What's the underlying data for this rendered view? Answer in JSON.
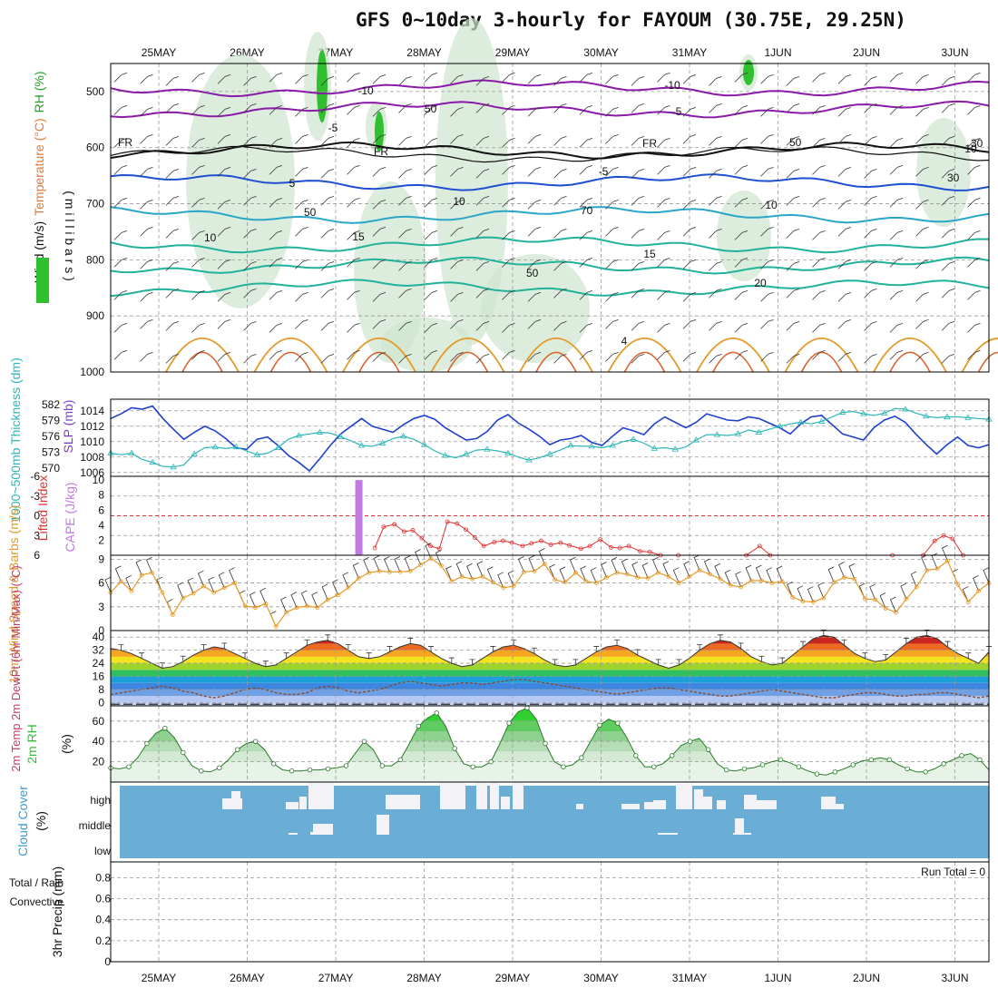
{
  "title": "GFS 0~10day 3-hourly for FAYOUM (30.75E, 29.25N)",
  "dates": [
    "25MAY",
    "26MAY",
    "27MAY",
    "28MAY",
    "29MAY",
    "30MAY",
    "31MAY",
    "1JUN",
    "2JUN",
    "3JUN"
  ],
  "colors": {
    "frame": "#000000",
    "grid": "#999999",
    "purple": "#8a1aa8",
    "blue": "#1f4fd1",
    "cyan": "#2aa6c9",
    "teal": "#20b29a",
    "orange": "#e59a28",
    "green": "#2fbf2f",
    "cloud": "#6aaed6",
    "cape": "#c07be0",
    "lifted": "#e03030",
    "thickness": "#2bb7b7",
    "slp": "#1f3fcf"
  },
  "chart_data": [
    {
      "id": "upper_air",
      "type": "contour",
      "ylabel_parts": [
        "Wind (m/s)",
        "Temperature (°C)",
        "RH (%)"
      ],
      "ylabel_unit": "( m i l l i b a r s )",
      "ylim": [
        450,
        1000
      ],
      "yticks": [
        "500",
        "600",
        "700",
        "800",
        "900",
        "1000"
      ],
      "isotherm_labels": [
        "-10",
        "-10",
        "-5",
        "-5",
        "FR",
        "FR",
        "FR",
        "-5",
        "5",
        "10",
        "10",
        "10",
        "15",
        "15",
        "20",
        "4"
      ],
      "rh_labels": [
        "50",
        "50",
        "50",
        "10",
        "70",
        "50",
        "30",
        "30"
      ]
    },
    {
      "id": "thickness_slp",
      "type": "line",
      "ylabel_left": "1000~500mb Thickness (dm)",
      "ylabel_right": "SLP (mb)",
      "yticks_left": [
        "582",
        "579",
        "576",
        "573",
        "570"
      ],
      "yticks_right": [
        "1014",
        "1012",
        "1010",
        "1008",
        "1006"
      ],
      "slp_range": [
        1005.5,
        1015.5
      ],
      "slp": [
        1013,
        1013.6,
        1014.4,
        1014.2,
        1014.6,
        1013,
        1011.6,
        1010.3,
        1011.2,
        1012,
        1011.4,
        1010.4,
        1009.2,
        1009,
        1010.3,
        1010.6,
        1009.5,
        1008.2,
        1007.3,
        1006.2,
        1007.8,
        1009.5,
        1011,
        1012,
        1013,
        1012,
        1011.6,
        1011.2,
        1012.2,
        1013,
        1013.4,
        1012.9,
        1011.8,
        1011,
        1010.2,
        1010.4,
        1011.3,
        1012.8,
        1013.5,
        1012.4,
        1011.6,
        1010.7,
        1009.6,
        1010.2,
        1010.4,
        1010.8,
        1009.9,
        1009.5,
        1010.7,
        1011.8,
        1011.4,
        1010.9,
        1012.3,
        1013.2,
        1012.5,
        1011.8,
        1012.5,
        1013.6,
        1013.2,
        1012.8,
        1012.7,
        1013.2,
        1013,
        1012.4,
        1011.8,
        1011,
        1012.3,
        1013.2,
        1013.4,
        1012.2,
        1011,
        1010.6,
        1010.2,
        1011.8,
        1012.8,
        1013.3,
        1012.5,
        1011,
        1009.6,
        1008.4,
        1009.6,
        1010.6,
        1009.5,
        1009.2,
        1009.6
      ],
      "thickness": [
        1008.5,
        1008.3,
        1008.5,
        1007.7,
        1007.3,
        1006.8,
        1006.7,
        1007,
        1008.4,
        1009.2,
        1009.3,
        1009.1,
        1009.3,
        1008.8,
        1008.3,
        1008.5,
        1009.2,
        1010.3,
        1010.8,
        1011,
        1011.2,
        1011.1,
        1010.6,
        1010.1,
        1009.5,
        1009.4,
        1009.8,
        1010.4,
        1010.7,
        1010.3,
        1009.6,
        1008.8,
        1008.2,
        1007.9,
        1008.4,
        1008.9,
        1009,
        1008.8,
        1008.5,
        1008,
        1007.6,
        1007.9,
        1008.4,
        1008.9,
        1009.5,
        1009.4,
        1009.4,
        1009.2,
        1009.5,
        1010,
        1010.3,
        1009.8,
        1009.1,
        1009.2,
        1009,
        1009.3,
        1010.2,
        1010.9,
        1010.9,
        1010.8,
        1011,
        1011.5,
        1011.2,
        1011.6,
        1012,
        1012.3,
        1012.5,
        1012.3,
        1012.6,
        1013.2,
        1013.8,
        1013.9,
        1013.6,
        1013.4,
        1013.7,
        1014.3,
        1014.2,
        1013.7,
        1013.3,
        1013.1,
        1013.2,
        1013.2,
        1013.1,
        1013,
        1012.9
      ],
      "x_start": 0.3
    },
    {
      "id": "lifted_cape",
      "type": "line+bar",
      "ylabel_left": "Lifted Index",
      "ylabel_right": "CAPE (J/kg)",
      "yticks_left": [
        "-6",
        "-3",
        "0",
        "3",
        "6"
      ],
      "yticks_right": [
        "10",
        "8",
        "6",
        "4",
        "2"
      ],
      "li_range": [
        -6,
        6
      ],
      "cape_bar": {
        "x": 2.27,
        "value": 10
      },
      "lifted_index": [
        [
          2.45,
          4.9
        ],
        [
          2.55,
          1.7
        ],
        [
          2.67,
          1.3
        ],
        [
          2.78,
          2.4
        ],
        [
          2.88,
          2.2
        ],
        [
          2.98,
          3.4
        ],
        [
          3.08,
          4.6
        ],
        [
          3.18,
          5.0
        ],
        [
          3.27,
          0.9
        ],
        [
          3.38,
          1.2
        ],
        [
          3.48,
          2.1
        ],
        [
          3.58,
          3.3
        ],
        [
          3.68,
          4.6
        ],
        [
          3.8,
          4.0
        ],
        [
          3.9,
          3.8
        ],
        [
          4.0,
          4.1
        ],
        [
          4.12,
          4.6
        ],
        [
          4.22,
          4.2
        ],
        [
          4.33,
          3.8
        ],
        [
          4.44,
          4.4
        ],
        [
          4.55,
          4.1
        ],
        [
          4.65,
          4.5
        ],
        [
          4.78,
          5.0
        ],
        [
          4.88,
          4.6
        ],
        [
          5.0,
          3.6
        ],
        [
          5.12,
          4.8
        ],
        [
          5.22,
          4.9
        ],
        [
          5.32,
          4.6
        ],
        [
          5.45,
          5.4
        ],
        [
          5.56,
          5.5
        ],
        [
          5.68,
          6.0
        ],
        [
          5.88,
          6.0
        ],
        [
          6.65,
          6.0
        ],
        [
          6.8,
          4.6
        ],
        [
          6.92,
          6.0
        ],
        [
          8.3,
          6.0
        ],
        [
          8.65,
          6.0
        ],
        [
          8.78,
          3.8
        ],
        [
          8.88,
          3.0
        ],
        [
          8.98,
          3.5
        ],
        [
          9.1,
          6.0
        ]
      ]
    },
    {
      "id": "wind10m",
      "type": "line",
      "ylabel": "10m Wind Speed & Barbs (m/s)",
      "yticks": [
        "9",
        "6",
        "3",
        "0"
      ],
      "ylim": [
        0,
        9.5
      ],
      "speed": [
        4.8,
        6.2,
        5.0,
        7.0,
        7.3,
        4.8,
        2.0,
        4.1,
        4.7,
        5.6,
        4.8,
        5.4,
        6.0,
        3.1,
        2.9,
        3.4,
        0.5,
        2.3,
        2.9,
        3.1,
        2.9,
        3.9,
        4.5,
        5.4,
        6.6,
        7.3,
        7.5,
        7.4,
        7.4,
        7.5,
        8.3,
        9.1,
        8.2,
        6.2,
        6.8,
        6.5,
        6.8,
        6.1,
        5.4,
        5.6,
        7.4,
        7.5,
        8.4,
        6.4,
        6.1,
        7.3,
        6.2,
        6.0,
        6.7,
        7.3,
        7.1,
        6.7,
        6.6,
        7.3,
        6.8,
        6.0,
        6.8,
        7.6,
        7.1,
        6.5,
        5.7,
        5.5,
        6.3,
        6.3,
        6.0,
        6.2,
        4.2,
        3.7,
        3.6,
        4.1,
        6.1,
        6.7,
        6.5,
        4.0,
        3.9,
        2.8,
        2.3,
        4.0,
        5.5,
        7.6,
        7.8,
        8.8,
        5.8,
        3.6,
        5.0,
        6.0
      ]
    },
    {
      "id": "temp2m",
      "type": "area",
      "ylabel": "2m Temp 2m DewPt (6hr Min/Max) (°C)",
      "yticks": [
        "40",
        "32",
        "24",
        "16",
        "8",
        "0"
      ],
      "ylim": [
        -2,
        44
      ],
      "temperature": [
        33,
        32,
        30,
        27,
        24,
        21,
        22,
        25,
        29,
        32,
        34,
        33,
        30,
        27,
        24,
        22,
        23,
        27,
        31,
        35,
        37,
        38,
        36,
        32,
        28,
        27,
        28,
        31,
        34,
        36,
        35,
        31,
        27,
        24,
        22,
        23,
        27,
        31,
        34,
        35,
        33,
        30,
        26,
        23,
        22,
        23,
        27,
        31,
        34,
        35,
        33,
        29,
        26,
        23,
        21,
        23,
        27,
        32,
        36,
        38,
        37,
        33,
        28,
        25,
        23,
        24,
        29,
        34,
        39,
        41,
        40,
        35,
        30,
        27,
        25,
        26,
        31,
        36,
        40,
        41,
        39,
        34,
        30,
        27,
        24,
        31
      ],
      "dewpoint": [
        5,
        6,
        7,
        8,
        9,
        10,
        9,
        7,
        6,
        4,
        3,
        4,
        6,
        8,
        9,
        8,
        6,
        5,
        5,
        6,
        9,
        10,
        9,
        7,
        6,
        7,
        8,
        10,
        12,
        13,
        12,
        11,
        10,
        11,
        12,
        12,
        11,
        12,
        13,
        14,
        14,
        13,
        12,
        11,
        10,
        9,
        8,
        7,
        6,
        5,
        6,
        7,
        8,
        9,
        9,
        8,
        7,
        6,
        5,
        4,
        4,
        5,
        6,
        7,
        8,
        7,
        6,
        5,
        4,
        3,
        3,
        4,
        5,
        6,
        6,
        5,
        4,
        4,
        5,
        5,
        6,
        6,
        5,
        4,
        3,
        4
      ],
      "dewpoint_dash": -1
    },
    {
      "id": "rh2m",
      "type": "area",
      "ylabel": "2m RH (%)",
      "yticks": [
        "60",
        "40",
        "20"
      ],
      "ylim": [
        0,
        75
      ],
      "rh": [
        14,
        13,
        15,
        24,
        38,
        48,
        53,
        44,
        29,
        16,
        11,
        10,
        14,
        22,
        32,
        38,
        40,
        32,
        18,
        12,
        11,
        11,
        12,
        12,
        13,
        14,
        16,
        28,
        40,
        32,
        16,
        16,
        22,
        38,
        55,
        63,
        68,
        55,
        33,
        18,
        15,
        15,
        20,
        38,
        58,
        69,
        73,
        62,
        38,
        20,
        15,
        17,
        24,
        40,
        56,
        62,
        58,
        44,
        26,
        15,
        15,
        18,
        26,
        36,
        40,
        43,
        32,
        18,
        12,
        11,
        13,
        14,
        17,
        20,
        22,
        19,
        15,
        11,
        8,
        7,
        10,
        13,
        17,
        21,
        22,
        24,
        22,
        17,
        13,
        10,
        10,
        13,
        18,
        22,
        26,
        28,
        22,
        12
      ]
    },
    {
      "id": "cloud",
      "type": "bar",
      "ylabel": "Cloud Cover (%)",
      "ytick_labels": [
        "high",
        "middle",
        "low"
      ]
    },
    {
      "id": "precip",
      "type": "bar",
      "ylabel": "3hr Precip (mm) Total / Rain Convective",
      "ylabel_total": "Total / Rain",
      "ylabel_conv": "Convective",
      "ylabel_unit": "3hr Precip (mm)",
      "yticks": [
        "0.8",
        "0.6",
        "0.4",
        "0.2",
        "0"
      ],
      "ylim": [
        0,
        0.95
      ],
      "run_total": "Run Total = 0",
      "values": []
    }
  ]
}
